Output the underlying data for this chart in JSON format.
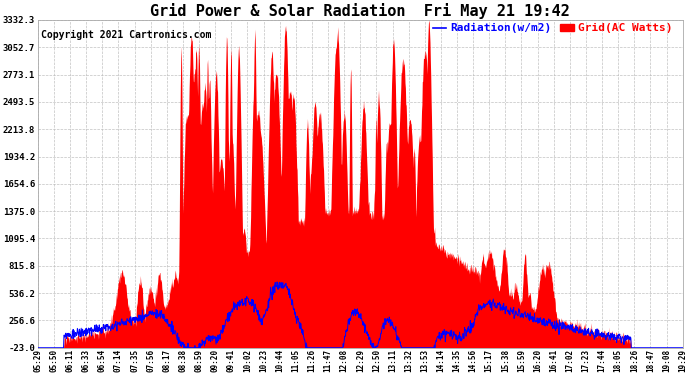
{
  "title": "Grid Power & Solar Radiation  Fri May 21 19:42",
  "copyright": "Copyright 2021 Cartronics.com",
  "legend_radiation": "Radiation(w/m2)",
  "legend_grid": "Grid(AC Watts)",
  "yticks": [
    -23.0,
    256.6,
    536.2,
    815.8,
    1095.4,
    1375.0,
    1654.6,
    1934.2,
    2213.8,
    2493.5,
    2773.1,
    3052.7,
    3332.3
  ],
  "ymin": -23.0,
  "ymax": 3332.3,
  "xtick_labels": [
    "05:29",
    "05:50",
    "06:11",
    "06:33",
    "06:54",
    "07:14",
    "07:35",
    "07:56",
    "08:17",
    "08:38",
    "08:59",
    "09:20",
    "09:41",
    "10:02",
    "10:23",
    "10:44",
    "11:05",
    "11:26",
    "11:47",
    "12:08",
    "12:29",
    "12:50",
    "13:11",
    "13:32",
    "13:53",
    "14:14",
    "14:35",
    "14:56",
    "15:17",
    "15:38",
    "15:59",
    "16:20",
    "16:41",
    "17:02",
    "17:23",
    "17:44",
    "18:05",
    "18:26",
    "18:47",
    "19:08",
    "19:29"
  ],
  "title_fontsize": 11,
  "copyright_fontsize": 7,
  "legend_fontsize": 8,
  "grid_color": "#bbbbbb",
  "background_color": "#ffffff",
  "fill_color": "#ff0000",
  "line_color": "#0000ff",
  "title_color": "#000000",
  "copyright_color": "#000000",
  "legend_radiation_color": "#0000ff",
  "legend_grid_color": "#ff0000"
}
